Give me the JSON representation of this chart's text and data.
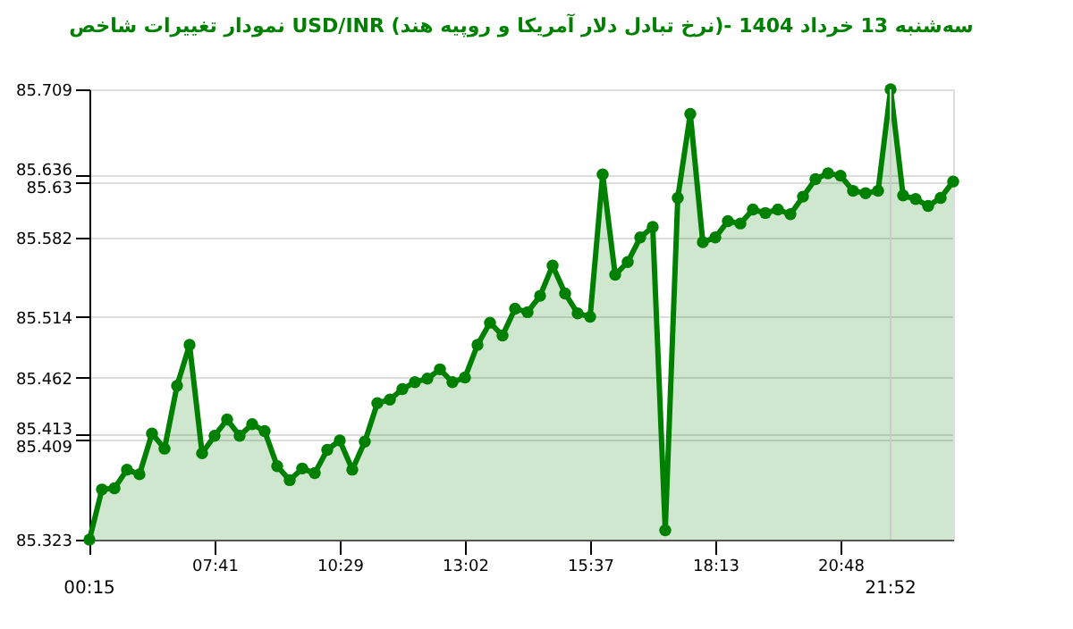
{
  "chart_data": {
    "type": "area",
    "title": "نمودار تغییرات شاخص USD/INR (نرخ تبادل دلار آمریکا و روپیه هند)- سه‌شنبه  13 خرداد 1404",
    "categories": [
      "00:15",
      null,
      null,
      null,
      null,
      null,
      null,
      null,
      null,
      null,
      "07:41",
      null,
      null,
      null,
      null,
      null,
      null,
      null,
      null,
      null,
      "10:29",
      null,
      null,
      null,
      null,
      null,
      null,
      null,
      null,
      null,
      "13:02",
      null,
      null,
      null,
      null,
      null,
      null,
      null,
      null,
      null,
      "15:37",
      null,
      null,
      null,
      null,
      null,
      null,
      null,
      null,
      null,
      "18:13",
      null,
      null,
      null,
      null,
      null,
      null,
      null,
      null,
      null,
      "20:48",
      null,
      null,
      null,
      "21:52",
      null,
      null,
      null,
      null,
      null
    ],
    "series": [
      {
        "color": "#008000",
        "values": [
          85.323,
          85.366,
          85.367,
          85.383,
          85.379,
          85.414,
          85.401,
          85.455,
          85.49,
          85.397,
          85.412,
          85.426,
          85.412,
          85.422,
          85.416,
          85.386,
          85.374,
          85.384,
          85.38,
          85.4,
          85.408,
          85.383,
          85.407,
          85.44,
          85.443,
          85.452,
          85.458,
          85.461,
          85.469,
          85.458,
          85.462,
          85.49,
          85.509,
          85.498,
          85.521,
          85.518,
          85.532,
          85.558,
          85.534,
          85.517,
          85.514,
          85.636,
          85.55,
          85.561,
          85.582,
          85.591,
          85.331,
          85.616,
          85.688,
          85.578,
          85.582,
          85.596,
          85.594,
          85.606,
          85.603,
          85.606,
          85.602,
          85.617,
          85.632,
          85.637,
          85.635,
          85.622,
          85.62,
          85.622,
          85.709,
          85.618,
          85.615,
          85.609,
          85.616,
          85.63
        ]
      }
    ],
    "ylim": [
      85.323,
      85.709
    ],
    "yticks": [
      85.323,
      85.409,
      85.413,
      85.462,
      85.514,
      85.582,
      85.63,
      85.636,
      85.709
    ],
    "grid": "y",
    "marker": "circle",
    "line_style": "solid",
    "ref_lines": [
      {
        "axis": "x",
        "value": "21:52",
        "color": "#cccccc"
      }
    ]
  }
}
